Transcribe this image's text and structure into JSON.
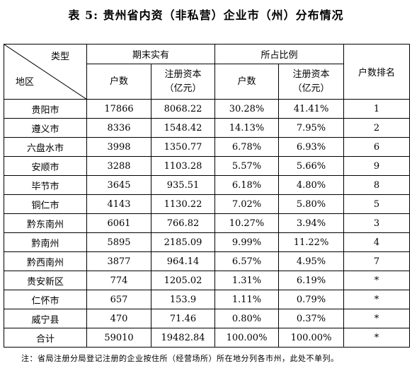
{
  "title": "表 5: 贵州省内资（非私营）企业市（州）分布情况",
  "table": {
    "corner": {
      "top": "类型",
      "bottom": "地区"
    },
    "groups": [
      "期末实有",
      "所占比例",
      "户数排名"
    ],
    "subheaders": [
      "户数",
      "注册资本\n（亿元）",
      "户数",
      "注册资本\n（亿元）"
    ],
    "rows": [
      [
        "贵阳市",
        "17866",
        "8068.22",
        "30.28%",
        "41.41%",
        "1"
      ],
      [
        "遵义市",
        "8336",
        "1548.42",
        "14.13%",
        "7.95%",
        "2"
      ],
      [
        "六盘水市",
        "3998",
        "1350.77",
        "6.78%",
        "6.93%",
        "6"
      ],
      [
        "安顺市",
        "3288",
        "1103.28",
        "5.57%",
        "5.66%",
        "9"
      ],
      [
        "毕节市",
        "3645",
        "935.51",
        "6.18%",
        "4.80%",
        "8"
      ],
      [
        "铜仁市",
        "4143",
        "1130.22",
        "7.02%",
        "5.80%",
        "5"
      ],
      [
        "黔东南州",
        "6061",
        "766.82",
        "10.27%",
        "3.94%",
        "3"
      ],
      [
        "黔南州",
        "5895",
        "2185.09",
        "9.99%",
        "11.22%",
        "4"
      ],
      [
        "黔西南州",
        "3877",
        "964.14",
        "6.57%",
        "4.95%",
        "7"
      ],
      [
        "贵安新区",
        "774",
        "1205.02",
        "1.31%",
        "6.19%",
        "*"
      ],
      [
        "仁怀市",
        "657",
        "153.9",
        "1.11%",
        "0.79%",
        "*"
      ],
      [
        "威宁县",
        "470",
        "71.46",
        "0.80%",
        "0.37%",
        "*"
      ],
      [
        "合计",
        "59010",
        "19482.84",
        "100.00%",
        "100.00%",
        "*"
      ]
    ]
  },
  "note": "注：省局注册分局登记注册的企业按住所（经营场所）所在地分列各市州，此处不单列。"
}
